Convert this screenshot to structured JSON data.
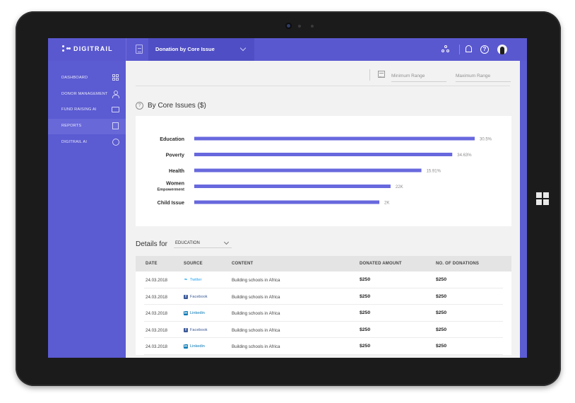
{
  "brand": {
    "name": "DIGITRAIL"
  },
  "topbar": {
    "dropdown_label": "Donation by Core Issue"
  },
  "sidebar": {
    "items": [
      {
        "label": "DASHBOARD",
        "icon": "grid-icon"
      },
      {
        "label": "DONOR MANAGEMENT",
        "icon": "user-icon"
      },
      {
        "label": "FUND RAISING AI",
        "icon": "money-icon"
      },
      {
        "label": "REPORTS",
        "icon": "report-icon",
        "active": true
      },
      {
        "label": "DIGITRAIL AI",
        "icon": "globe-icon"
      }
    ]
  },
  "filters": {
    "min_placeholder": "Minimum Range",
    "max_placeholder": "Maximum Range"
  },
  "section": {
    "title": "By Core Issues ($)"
  },
  "chart_data": {
    "type": "bar",
    "orientation": "horizontal",
    "title": "By Core Issues ($)",
    "categories": [
      "Education",
      "Poverty",
      "Health",
      "Women Empowerment",
      "Child Issue"
    ],
    "category_lines": [
      [
        "Education"
      ],
      [
        "Poverty"
      ],
      [
        "Health"
      ],
      [
        "Women",
        "Empowerment"
      ],
      [
        "Child Issue"
      ]
    ],
    "values": [
      30.5,
      34.63,
      15.91,
      22,
      2
    ],
    "data_labels": [
      "30.5%",
      "34.63%",
      "15.91%",
      "22K",
      "2K"
    ],
    "bar_fraction_of_longest": [
      1.0,
      0.92,
      0.81,
      0.7,
      0.66
    ],
    "bar_color": "#6868de",
    "grid": false,
    "legend": "none"
  },
  "details": {
    "label": "Details for",
    "selected": "EDUCATION"
  },
  "table": {
    "headers": [
      "DATE",
      "SOURCE",
      "CONTENT",
      "DONATED AMOUNT",
      "NO. OF DONATIONS"
    ],
    "rows": [
      {
        "date": "24.03.2018",
        "source": "Twitter",
        "source_icon": "twitter-icon",
        "content": "Building schools in Africa",
        "amount": "$250",
        "count": "$250"
      },
      {
        "date": "24.03.2018",
        "source": "Facebook",
        "source_icon": "facebook-icon",
        "content": "Building schools in Africa",
        "amount": "$250",
        "count": "$250"
      },
      {
        "date": "24.03.2018",
        "source": "Linkedin",
        "source_icon": "linkedin-icon",
        "content": "Building schools in Africa",
        "amount": "$250",
        "count": "$250"
      },
      {
        "date": "24.03.2018",
        "source": "Facebook",
        "source_icon": "facebook-icon",
        "content": "Building schools in Africa",
        "amount": "$250",
        "count": "$250"
      },
      {
        "date": "24.03.2018",
        "source": "Linkedin",
        "source_icon": "linkedin-icon",
        "content": "Building schools in Africa",
        "amount": "$250",
        "count": "$250"
      }
    ]
  },
  "colors": {
    "accent": "#5b5bd2",
    "twitter": "#1da1f2",
    "facebook": "#3b5998",
    "linkedin": "#0077b5"
  }
}
